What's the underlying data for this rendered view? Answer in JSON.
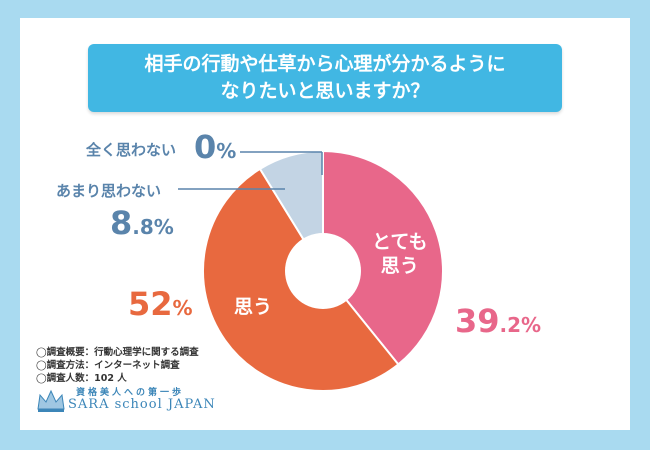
{
  "title": {
    "line1": "相手の行動や仕草から心理が分かるように",
    "line2": "なりたいと思いますか？"
  },
  "chart_data": {
    "type": "pie",
    "variant": "donut",
    "categories": [
      "とても思う",
      "思う",
      "あまり思わない",
      "全く思わない"
    ],
    "values": [
      39.2,
      52,
      8.8,
      0
    ],
    "colors": [
      "#e8678a",
      "#e8693f",
      "#c3d4e4",
      "#c3d4e4"
    ],
    "labels": {
      "very": {
        "text_line1": "とても",
        "text_line2": "思う",
        "pct_int": "39",
        "pct_dec": ".2%"
      },
      "think": {
        "text": "思う",
        "pct_int": "52",
        "pct_dec": "%"
      },
      "not_much": {
        "text": "あまり思わない",
        "pct_int": "8",
        "pct_dec": ".8%"
      },
      "not_at_all": {
        "text": "全く思わない",
        "pct_int": "0",
        "pct_dec": "%"
      }
    }
  },
  "notes": {
    "line1": "◯調査概要：行動心理学に関する調査",
    "line2": "◯調査方法：インターネット調査",
    "line3": "◯調査人数：102 人"
  },
  "logo": {
    "tagline": "資格美人への第一歩",
    "brand": "SARA school JAPAN"
  }
}
